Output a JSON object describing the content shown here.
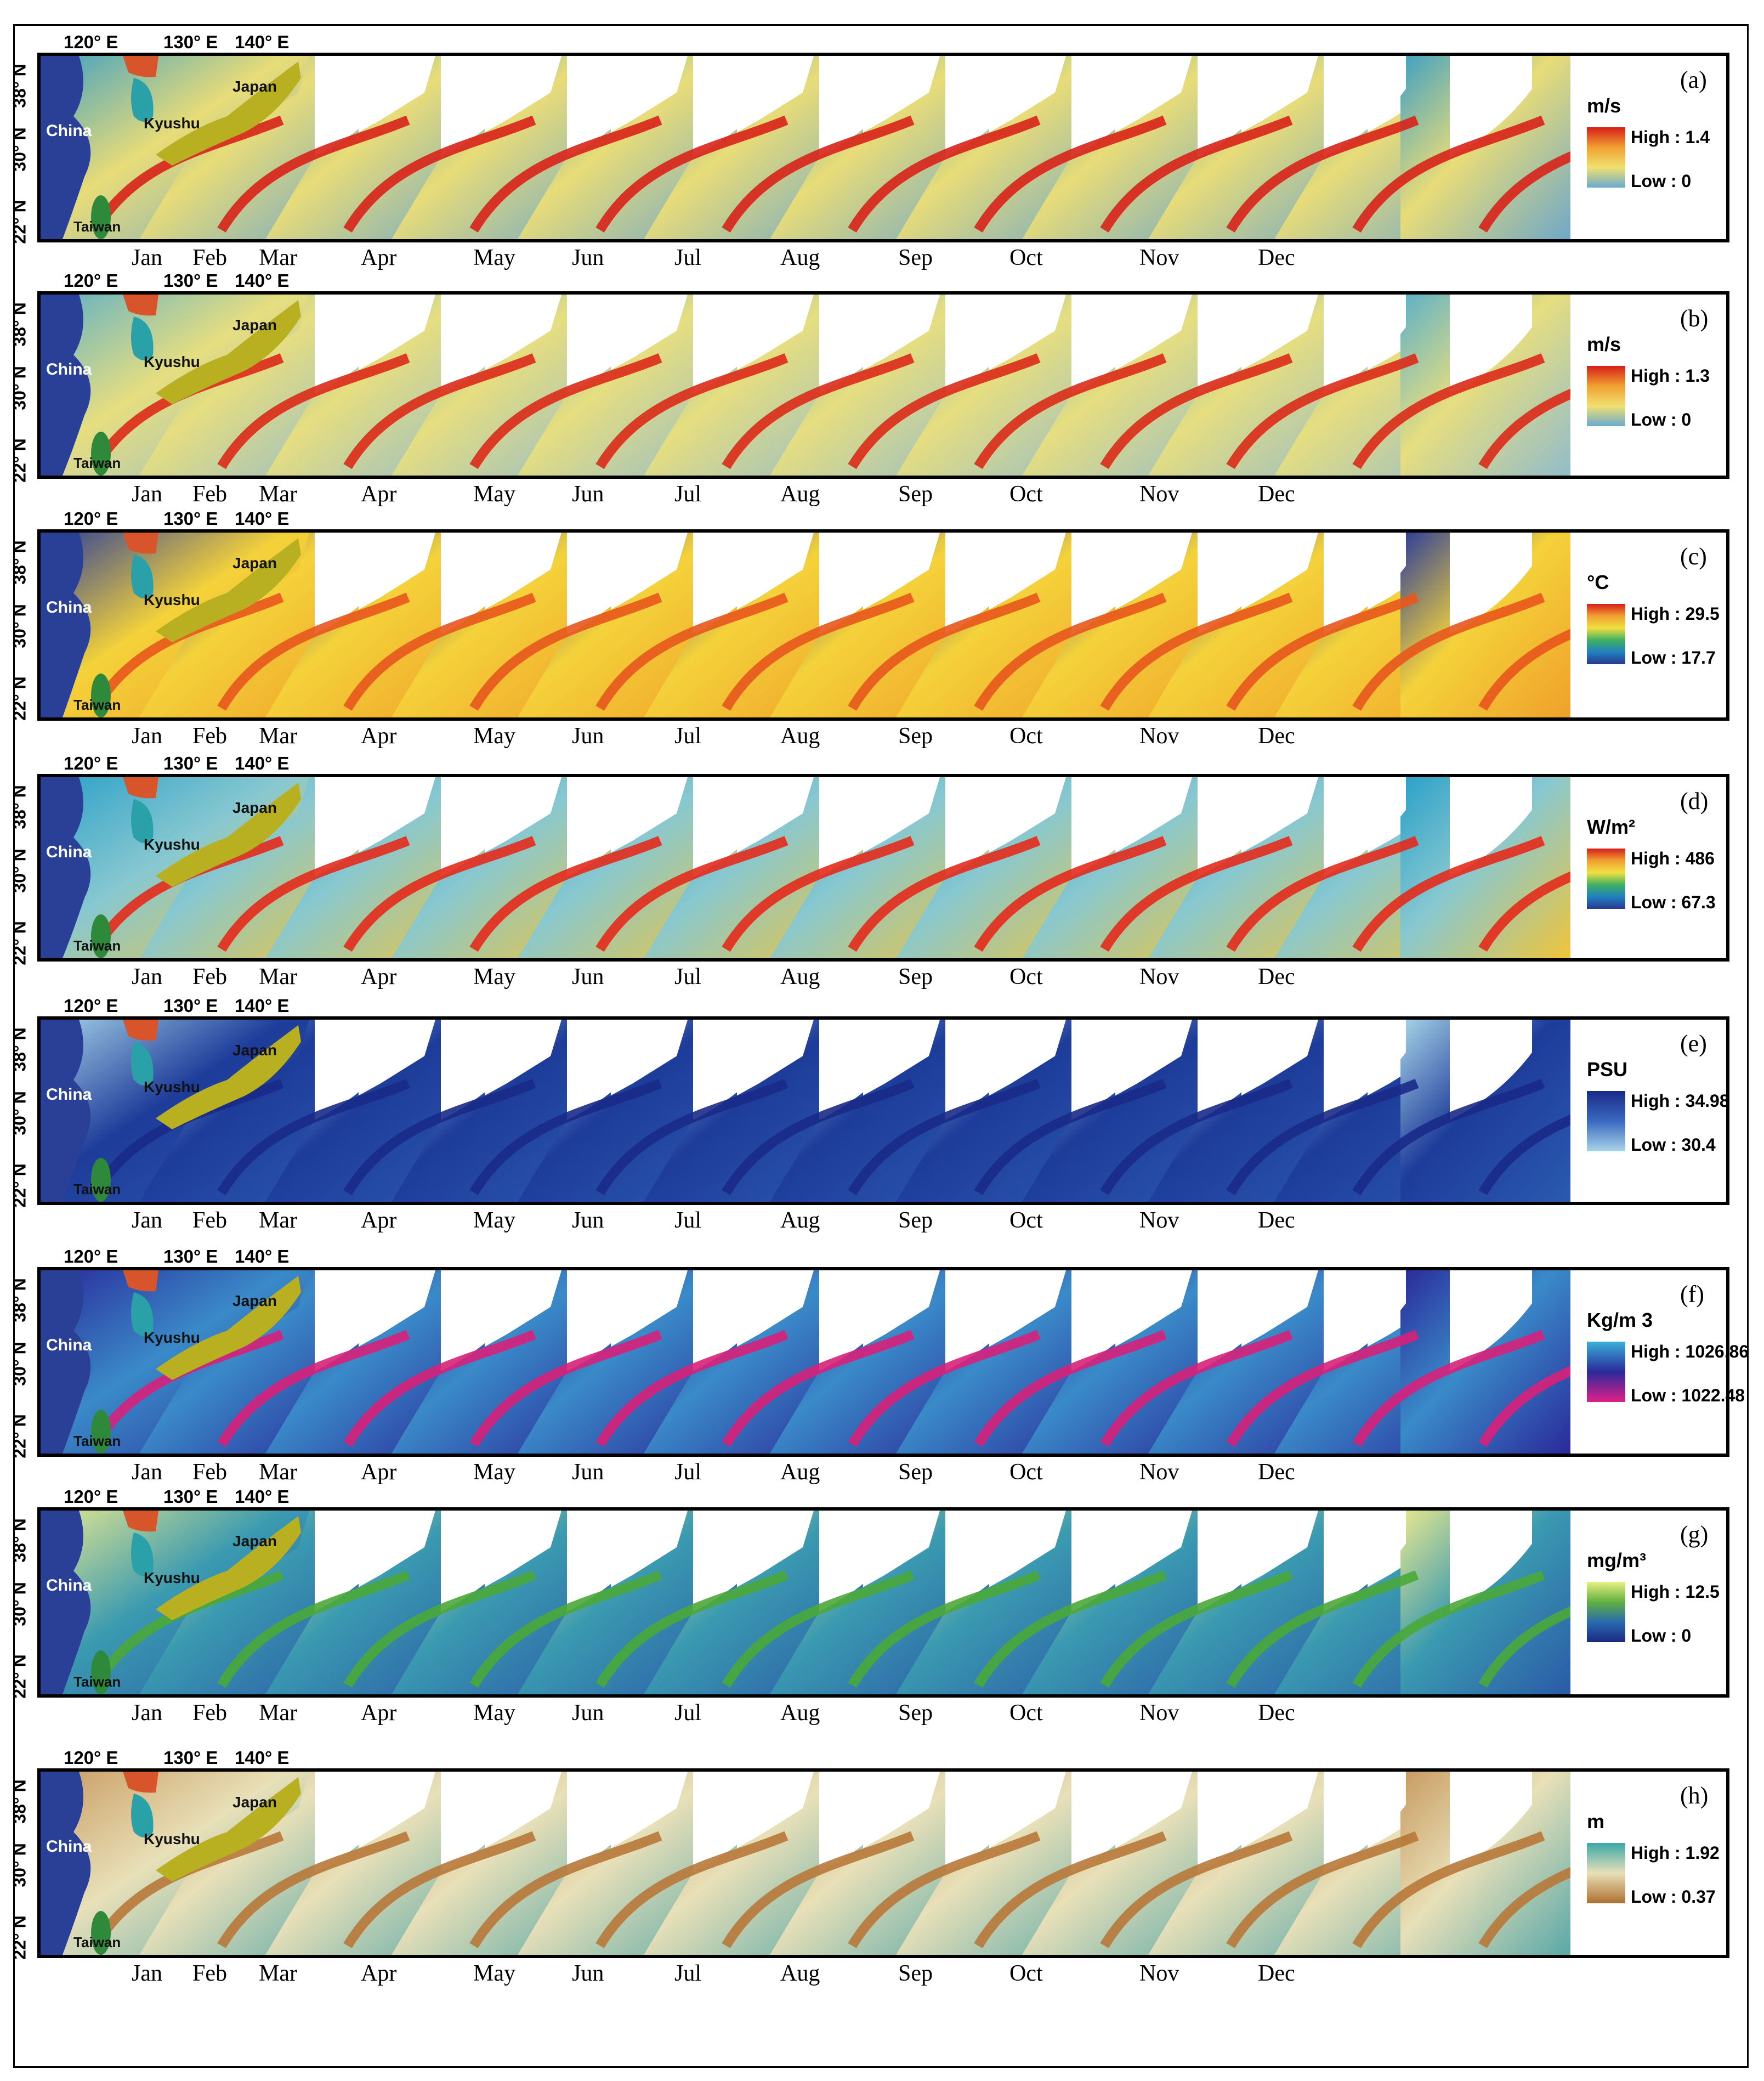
{
  "coords": {
    "lon": [
      "120° E",
      "130° E",
      "140° E"
    ],
    "lat": [
      "38° N",
      "30° N",
      "22° N"
    ]
  },
  "places": {
    "china": "China",
    "kyushu": "Kyushu",
    "japan": "Japan",
    "taiwan": "Taiwan"
  },
  "months": [
    "Jan",
    "Feb",
    "Mar",
    "Apr",
    "May",
    "Jun",
    "Jul",
    "Aug",
    "Sep",
    "Oct",
    "Nov",
    "Dec"
  ],
  "panels": [
    {
      "id": "a",
      "label": "(a)",
      "unit": "m/s",
      "high": "High : 1.4",
      "low": "Low : 0",
      "colors": {
        "sea": "#6fa8c8",
        "mid": "#e8dc78",
        "jet": "#d8221a",
        "land": "#2a3f96",
        "top_left": "#3ea0c4"
      }
    },
    {
      "id": "b",
      "label": "(b)",
      "unit": "m/s",
      "high": "High : 1.3",
      "low": "Low : 0",
      "colors": {
        "sea": "#92bccb",
        "mid": "#e6de80",
        "jet": "#dc2a18",
        "land": "#2a3f96",
        "top_left": "#5cb0c8"
      }
    },
    {
      "id": "c",
      "label": "(c)",
      "unit": "°C",
      "high": "High : 29.5",
      "low": "Low : 17.7",
      "colors": {
        "sea": "#f0a02a",
        "mid": "#f4d23a",
        "jet": "#e8561c",
        "land": "#2a3f96",
        "top_left": "#2a3c9a"
      }
    },
    {
      "id": "d",
      "label": "(d)",
      "unit": "W/m²",
      "high": "High : 486",
      "low": "Low : 67.3",
      "colors": {
        "sea": "#f0c43a",
        "mid": "#88c8d0",
        "jet": "#e42a1c",
        "land": "#2a3f96",
        "top_left": "#2aa0c8"
      }
    },
    {
      "id": "e",
      "label": "(e)",
      "unit": "PSU",
      "high": "High : 34.98",
      "low": "Low : 30.4",
      "colors": {
        "sea": "#2a5ab0",
        "mid": "#1e3c9a",
        "jet": "#1a2a88",
        "land": "#2a3f96",
        "top_left": "#a8d4e8"
      }
    },
    {
      "id": "f",
      "label": "(f)",
      "unit": "Kg/m 3",
      "high": "High : 1026.86",
      "low": "Low : 1022.48",
      "colors": {
        "sea": "#2a2a9a",
        "mid": "#3a8ac8",
        "jet": "#d8207a",
        "land": "#2a3f96",
        "top_left": "#2a2a9a"
      }
    },
    {
      "id": "g",
      "label": "(g)",
      "unit": "mg/m³",
      "high": "High : 12.5",
      "low": "Low : 0",
      "colors": {
        "sea": "#2a5aa8",
        "mid": "#3a9ab0",
        "jet": "#4aa838",
        "land": "#2a3f96",
        "top_left": "#e8e890"
      }
    },
    {
      "id": "h",
      "label": "(h)",
      "unit": "m",
      "high": "High : 1.92",
      "low": "Low : 0.37",
      "colors": {
        "sea": "#5aa8a8",
        "mid": "#e8e0b8",
        "jet": "#b87838",
        "land": "#2a3f96",
        "top_left": "#c89a60"
      }
    }
  ],
  "legend_gradients": {
    "a": [
      "#d81e1a",
      "#f0a030",
      "#f0e070",
      "#6aaad0"
    ],
    "b": [
      "#d81e1a",
      "#f0a030",
      "#f0e070",
      "#6aaad0"
    ],
    "c": [
      "#d81e1a",
      "#f0a030",
      "#f0e040",
      "#40b060",
      "#2080c0",
      "#283890"
    ],
    "d": [
      "#d81e1a",
      "#f0a030",
      "#f0e040",
      "#40b060",
      "#2080c0",
      "#283890"
    ],
    "e": [
      "#1a2a88",
      "#3a6ac0",
      "#a8d4e8"
    ],
    "f": [
      "#3ab0d8",
      "#2a2a9a",
      "#e0208a"
    ],
    "g": [
      "#e8f080",
      "#60b040",
      "#2a6ab0",
      "#1a2a80"
    ],
    "h": [
      "#3aa8a8",
      "#e8e0b8",
      "#b07030"
    ]
  }
}
